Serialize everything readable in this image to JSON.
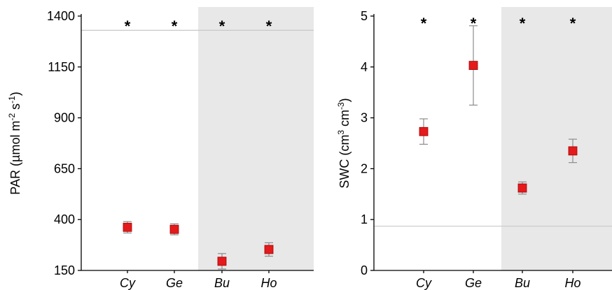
{
  "chart_data": [
    {
      "type": "scatter",
      "title": "",
      "categories": [
        "Cy",
        "Ge",
        "Bu",
        "Ho"
      ],
      "y_axis_label_parts": [
        "PAR (µmol m",
        "-2",
        " s",
        "-1",
        ")"
      ],
      "ylim": [
        150,
        1400
      ],
      "yticks": [
        150,
        400,
        650,
        900,
        1150,
        1400
      ],
      "ytick_labels": [
        "150",
        "400",
        "650",
        "900",
        "1150",
        "1400"
      ],
      "series": [
        {
          "values": [
            362,
            352,
            195,
            253
          ],
          "error": [
            28,
            27,
            38,
            33
          ]
        }
      ],
      "reference_line": 1330,
      "significance": [
        "*",
        "*",
        "*",
        "*"
      ],
      "shaded_categories": [
        "Bu",
        "Ho"
      ],
      "grid": false
    },
    {
      "type": "scatter",
      "title": "",
      "categories": [
        "Cy",
        "Ge",
        "Bu",
        "Ho"
      ],
      "y_axis_label_parts": [
        "SWC (cm",
        "3",
        " cm",
        "-3",
        ")"
      ],
      "ylim": [
        0,
        5
      ],
      "yticks": [
        0,
        1,
        2,
        3,
        4,
        5
      ],
      "ytick_labels": [
        "0",
        "1",
        "2",
        "3",
        "4",
        "5"
      ],
      "series": [
        {
          "values": [
            2.73,
            4.03,
            1.62,
            2.35
          ],
          "error": [
            0.25,
            0.78,
            0.12,
            0.23
          ]
        }
      ],
      "reference_line": 0.87,
      "significance": [
        "*",
        "*",
        "*",
        "*"
      ],
      "shaded_categories": [
        "Bu",
        "Ho"
      ],
      "grid": false
    }
  ],
  "colors": {
    "marker": "#e41a1c",
    "marker_edge": "#a00000",
    "error_bar": "#8c8c8c",
    "shading": "#e8e8e8",
    "reference_line": "#c8c8c8",
    "axis": "#000000"
  }
}
